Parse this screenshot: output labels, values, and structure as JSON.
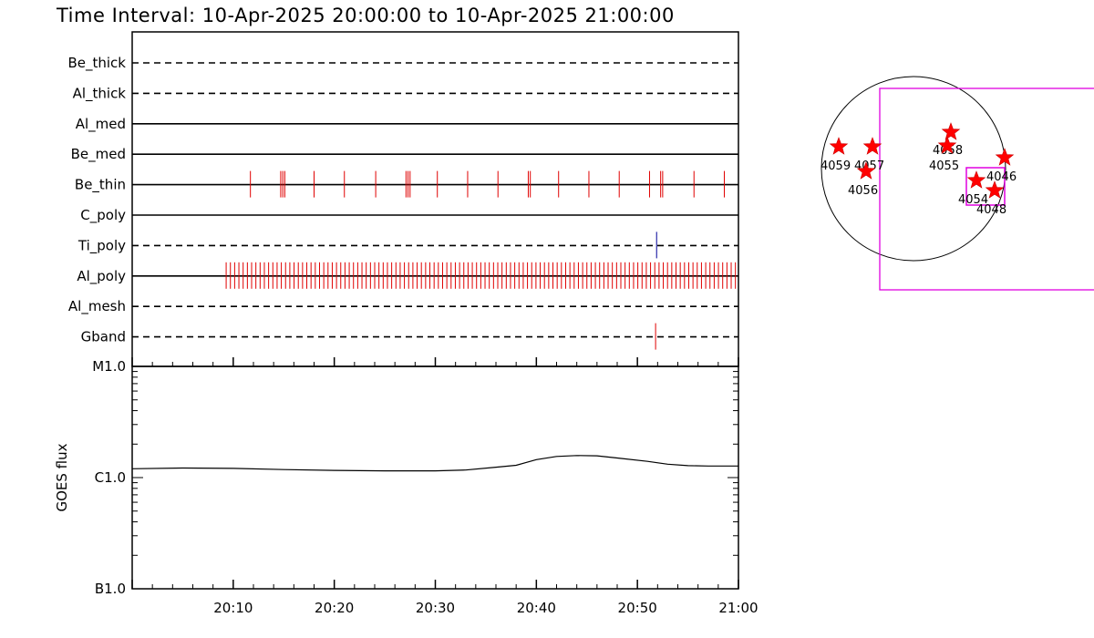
{
  "title": "Time Interval: 10-Apr-2025 20:00:00 to 10-Apr-2025 21:00:00",
  "colors": {
    "event_red": "#e00000",
    "event_blue": "#000099",
    "fov_magenta": "#e000e0",
    "star_red": "#ff0000"
  },
  "chart_data": [
    {
      "type": "event-raster",
      "x_range": [
        "20:00",
        "21:00"
      ],
      "x_unit": "minutes after 20:00",
      "channels": [
        {
          "name": "Be_thick",
          "line_style": "dashed",
          "events": []
        },
        {
          "name": "Al_thick",
          "line_style": "dashed",
          "events": []
        },
        {
          "name": "Al_med",
          "line_style": "solid",
          "events": []
        },
        {
          "name": "Be_med",
          "line_style": "solid",
          "events": []
        },
        {
          "name": "Be_thin",
          "line_style": "solid",
          "event_color": "#e00000",
          "events": [
            11.7,
            14.7,
            14.9,
            15.1,
            18.0,
            21.0,
            24.1,
            27.1,
            27.3,
            27.5,
            30.2,
            33.2,
            36.2,
            39.2,
            39.4,
            42.2,
            45.2,
            48.2,
            51.2,
            52.3,
            52.5,
            55.6,
            58.6
          ]
        },
        {
          "name": "C_poly",
          "line_style": "solid",
          "events": []
        },
        {
          "name": "Ti_poly",
          "line_style": "dashed",
          "event_color": "#000099",
          "events": [
            51.9
          ]
        },
        {
          "name": "Al_poly",
          "line_style": "solid",
          "event_color": "#e00000",
          "interval": 0.42,
          "events_from": 9.3,
          "events_to": 59.9
        },
        {
          "name": "Al_mesh",
          "line_style": "dashed",
          "events": []
        },
        {
          "name": "Gband",
          "line_style": "dashed",
          "event_color": "#e00000",
          "events": [
            51.8
          ]
        }
      ]
    },
    {
      "type": "line",
      "ylabel": "GOES flux",
      "y_scale": "log",
      "y_ticks": [
        "M1.0",
        "C1.0",
        "B1.0"
      ],
      "y_range": [
        "B1.0",
        "M1.0"
      ],
      "x_ticks": [
        "20:10",
        "20:20",
        "20:30",
        "20:40",
        "20:50",
        "21:00"
      ],
      "x_range": [
        "20:00",
        "21:00"
      ],
      "series": [
        {
          "values_unit": "W/m^2",
          "points": [
            [
              0.0,
              1.2e-06
            ],
            [
              5.0,
              1.22e-06
            ],
            [
              10.0,
              1.21e-06
            ],
            [
              15.0,
              1.18e-06
            ],
            [
              20.0,
              1.16e-06
            ],
            [
              25.0,
              1.15e-06
            ],
            [
              30.0,
              1.15e-06
            ],
            [
              33.0,
              1.17e-06
            ],
            [
              36.0,
              1.24e-06
            ],
            [
              38.0,
              1.29e-06
            ],
            [
              40.0,
              1.45e-06
            ],
            [
              42.0,
              1.55e-06
            ],
            [
              44.0,
              1.58e-06
            ],
            [
              46.0,
              1.57e-06
            ],
            [
              48.0,
              1.5e-06
            ],
            [
              51.0,
              1.4e-06
            ],
            [
              53.0,
              1.32e-06
            ],
            [
              55.0,
              1.28e-06
            ],
            [
              57.0,
              1.27e-06
            ],
            [
              60.0,
              1.27e-06
            ]
          ]
        }
      ]
    }
  ],
  "solar_map": {
    "active_regions": [
      {
        "label": "4059"
      },
      {
        "label": "4057"
      },
      {
        "label": "4056"
      },
      {
        "label": "4058"
      },
      {
        "label": "4055"
      },
      {
        "label": "4046"
      },
      {
        "label": "4054"
      },
      {
        "label": "4048"
      }
    ]
  }
}
